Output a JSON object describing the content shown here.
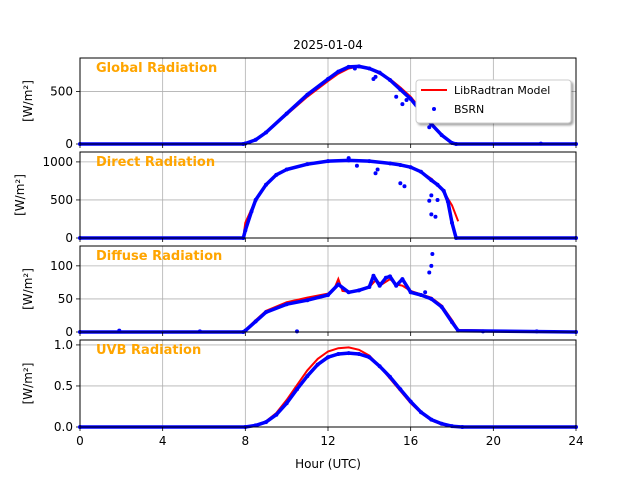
{
  "chart_data": {
    "title": "2025-01-04",
    "xlabel": "Hour (UTC)",
    "xlim": [
      0,
      24
    ],
    "xticks": [
      0,
      4,
      8,
      12,
      16,
      20,
      24
    ],
    "xtick_labels": [
      "0",
      "4",
      "8",
      "12",
      "16",
      "20",
      "24"
    ],
    "grid": true,
    "legend": {
      "position": "top-right of first panel",
      "entries": [
        {
          "label": "LibRadtran Model",
          "kind": "line",
          "color": "#ff0000"
        },
        {
          "label": "BSRN",
          "kind": "points",
          "color": "#0000ff"
        }
      ]
    },
    "series_colors": {
      "model": "#ff0000",
      "bsrn": "#0000ff",
      "panel_label": "#ffa500"
    },
    "panels": [
      {
        "type": "line",
        "label": "Global Radiation",
        "ylabel": "[W/m²]",
        "ylim": [
          0,
          820
        ],
        "yticks": [
          0,
          500
        ],
        "ytick_labels": [
          "0",
          "500"
        ],
        "model": {
          "x": [
            0,
            7.9,
            8.5,
            9,
            10,
            11,
            12,
            12.5,
            13,
            13.5,
            14,
            15,
            15.5,
            16,
            16.5,
            17,
            17.5,
            18,
            18.2,
            24
          ],
          "y": [
            0,
            0,
            40,
            110,
            280,
            450,
            600,
            670,
            720,
            740,
            720,
            620,
            540,
            450,
            330,
            200,
            90,
            10,
            0,
            0
          ]
        },
        "bsrn": {
          "x": [
            0,
            7.9,
            8,
            8.5,
            9,
            10,
            11,
            12,
            12.5,
            13,
            13.5,
            14,
            14.5,
            15,
            15.5,
            16,
            16.5,
            17,
            17.5,
            18,
            18.2,
            24
          ],
          "y": [
            0,
            0,
            5,
            40,
            110,
            290,
            470,
            620,
            690,
            735,
            740,
            720,
            680,
            610,
            520,
            430,
            310,
            190,
            85,
            10,
            0,
            0
          ]
        },
        "bsrn_outliers": [
          [
            13.3,
            720
          ],
          [
            14.2,
            620
          ],
          [
            14.3,
            640
          ],
          [
            15.3,
            450
          ],
          [
            15.6,
            380
          ],
          [
            15.8,
            420
          ],
          [
            16.9,
            160
          ],
          [
            22.3,
            4
          ]
        ]
      },
      {
        "type": "line",
        "label": "Direct Radiation",
        "ylabel": "[W/m²]",
        "ylim": [
          0,
          1130
        ],
        "yticks": [
          0,
          500,
          1000
        ],
        "ytick_labels": [
          "0",
          "500",
          "1000"
        ],
        "model": {
          "x": [
            0,
            7.9,
            8,
            8.5,
            9,
            9.5,
            10,
            11,
            12,
            13,
            14,
            15,
            15.5,
            16,
            16.5,
            17,
            17.5,
            18,
            18.3
          ],
          "y": [
            0,
            0,
            200,
            500,
            700,
            830,
            900,
            970,
            1010,
            1020,
            1010,
            980,
            960,
            930,
            870,
            780,
            650,
            430,
            220
          ]
        },
        "bsrn": {
          "x": [
            0,
            7.9,
            8,
            8.3,
            8.5,
            9,
            9.5,
            10,
            11,
            12,
            13,
            14,
            15,
            15.5,
            16,
            16.5,
            17,
            17.3,
            17.6,
            17.8,
            18,
            18.2,
            24
          ],
          "y": [
            0,
            0,
            100,
            350,
            500,
            700,
            830,
            900,
            970,
            1010,
            1020,
            1010,
            980,
            960,
            930,
            870,
            760,
            700,
            620,
            480,
            200,
            0,
            0
          ]
        },
        "bsrn_outliers": [
          [
            13.0,
            1050
          ],
          [
            13.4,
            950
          ],
          [
            14.3,
            850
          ],
          [
            14.4,
            900
          ],
          [
            15.5,
            720
          ],
          [
            15.7,
            680
          ],
          [
            16.9,
            490
          ],
          [
            17.0,
            310
          ],
          [
            17.2,
            280
          ],
          [
            17.3,
            500
          ],
          [
            17.0,
            560
          ]
        ]
      },
      {
        "type": "line",
        "label": "Diffuse Radiation",
        "ylabel": "[W/m²]",
        "ylim": [
          0,
          130
        ],
        "yticks": [
          0,
          50,
          100
        ],
        "ytick_labels": [
          "0",
          "50",
          "100"
        ],
        "model": {
          "x": [
            0,
            7.9,
            8,
            8.5,
            9,
            10,
            11,
            12,
            12.3,
            12.5,
            12.7,
            13,
            13.5,
            14,
            14.3,
            14.6,
            15,
            15.3,
            15.6,
            16,
            16.5,
            17,
            17.5,
            18,
            18.3,
            24
          ],
          "y": [
            0,
            0,
            3,
            18,
            32,
            45,
            52,
            58,
            65,
            80,
            62,
            61,
            63,
            68,
            78,
            72,
            80,
            72,
            70,
            62,
            57,
            52,
            40,
            18,
            3,
            0
          ]
        },
        "bsrn": {
          "x": [
            0,
            7.9,
            8,
            8.5,
            9,
            10,
            11,
            12,
            12.5,
            13,
            13.5,
            14,
            14.2,
            14.5,
            14.8,
            15,
            15.3,
            15.6,
            16,
            16.5,
            17,
            17.5,
            18,
            18.3,
            24
          ],
          "y": [
            0,
            0,
            2,
            16,
            30,
            42,
            48,
            56,
            72,
            60,
            63,
            68,
            85,
            70,
            82,
            84,
            70,
            80,
            60,
            56,
            50,
            38,
            15,
            2,
            0
          ]
        },
        "bsrn_outliers": [
          [
            1.9,
            2
          ],
          [
            5.8,
            1
          ],
          [
            10.5,
            1
          ],
          [
            16.7,
            60
          ],
          [
            16.9,
            90
          ],
          [
            17.0,
            100
          ],
          [
            17.05,
            118
          ],
          [
            19.5,
            1
          ],
          [
            22.1,
            1
          ]
        ]
      },
      {
        "type": "line",
        "label": "UVB Radiation",
        "ylabel": "[W/m²]",
        "ylim": [
          0,
          1.06
        ],
        "yticks": [
          0,
          0.5,
          1
        ],
        "ytick_labels": [
          "0.0",
          "0.5",
          "1.0"
        ],
        "model": {
          "x": [
            0,
            8,
            8.5,
            9,
            9.5,
            10,
            10.5,
            11,
            11.5,
            12,
            12.5,
            13,
            13.5,
            14,
            14.5,
            15,
            15.5,
            16,
            16.5,
            17,
            17.5,
            18,
            18.5,
            24
          ],
          "y": [
            0,
            0,
            0.02,
            0.07,
            0.17,
            0.33,
            0.51,
            0.69,
            0.83,
            0.92,
            0.96,
            0.97,
            0.94,
            0.87,
            0.74,
            0.59,
            0.44,
            0.29,
            0.17,
            0.08,
            0.03,
            0.01,
            0,
            0
          ]
        },
        "bsrn": {
          "x": [
            0,
            8,
            8.5,
            9,
            9.5,
            10,
            10.5,
            11,
            11.5,
            12,
            12.5,
            13,
            13.5,
            14,
            14.5,
            15,
            15.5,
            16,
            16.5,
            17,
            17.5,
            18,
            18.5,
            24
          ],
          "y": [
            0,
            0,
            0.02,
            0.06,
            0.15,
            0.29,
            0.46,
            0.62,
            0.76,
            0.85,
            0.89,
            0.9,
            0.89,
            0.85,
            0.74,
            0.61,
            0.46,
            0.31,
            0.18,
            0.09,
            0.04,
            0.01,
            0,
            0
          ]
        },
        "bsrn_outliers": []
      }
    ]
  }
}
